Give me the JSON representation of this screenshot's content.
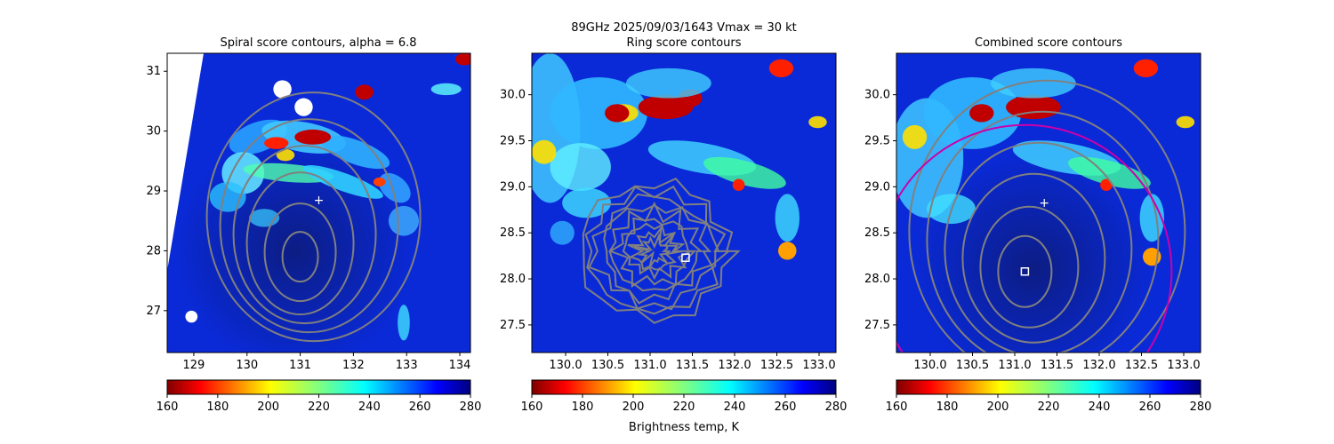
{
  "figure": {
    "suptitle": "89GHz  2025/09/03/1643    Vmax = 30 kt",
    "colorbar_label": "Brightness temp, K",
    "colormap": "jet_reversed",
    "colorbar_range": [
      160,
      280
    ],
    "colorbar_ticks": [
      "160",
      "180",
      "200",
      "220",
      "240",
      "260",
      "280"
    ]
  },
  "chart_data": [
    {
      "type": "heatmap",
      "title": "Spiral score contours, alpha =  6.8",
      "xlim": [
        128.5,
        134.2
      ],
      "ylim": [
        26.3,
        31.3
      ],
      "xticks": [
        "129",
        "130",
        "131",
        "132",
        "133",
        "134"
      ],
      "yticks": [
        "27",
        "28",
        "29",
        "30",
        "31"
      ],
      "colorbar_range": [
        160,
        280
      ],
      "center_marker": {
        "lon": 131.35,
        "lat": 28.85,
        "symbol": "+"
      },
      "contour_center": {
        "lon": 131.0,
        "lat": 27.9
      },
      "contour_color": "#808080"
    },
    {
      "type": "heatmap",
      "title": "Ring score contours",
      "xlim": [
        129.6,
        133.2
      ],
      "ylim": [
        27.2,
        30.45
      ],
      "xticks": [
        "130.0",
        "130.5",
        "131.0",
        "131.5",
        "132.0",
        "132.5",
        "133.0"
      ],
      "yticks": [
        "27.5",
        "28.0",
        "28.5",
        "29.0",
        "29.5",
        "30.0"
      ],
      "colorbar_range": [
        160,
        280
      ],
      "square_marker": {
        "lon": 131.42,
        "lat": 28.23
      },
      "contour_color": "#808080"
    },
    {
      "type": "heatmap",
      "title": "Combined score contours",
      "xlim": [
        129.6,
        133.2
      ],
      "ylim": [
        27.2,
        30.45
      ],
      "xticks": [
        "130.0",
        "130.5",
        "131.0",
        "131.5",
        "132.0",
        "132.5",
        "133.0"
      ],
      "yticks": [
        "27.5",
        "28.0",
        "28.5",
        "29.0",
        "29.5",
        "30.0"
      ],
      "colorbar_range": [
        160,
        280
      ],
      "center_marker": {
        "lon": 131.35,
        "lat": 28.83,
        "symbol": "+"
      },
      "square_marker": {
        "lon": 131.12,
        "lat": 28.08
      },
      "circle_color": "#cc00aa",
      "contour_color": "#808080"
    }
  ]
}
